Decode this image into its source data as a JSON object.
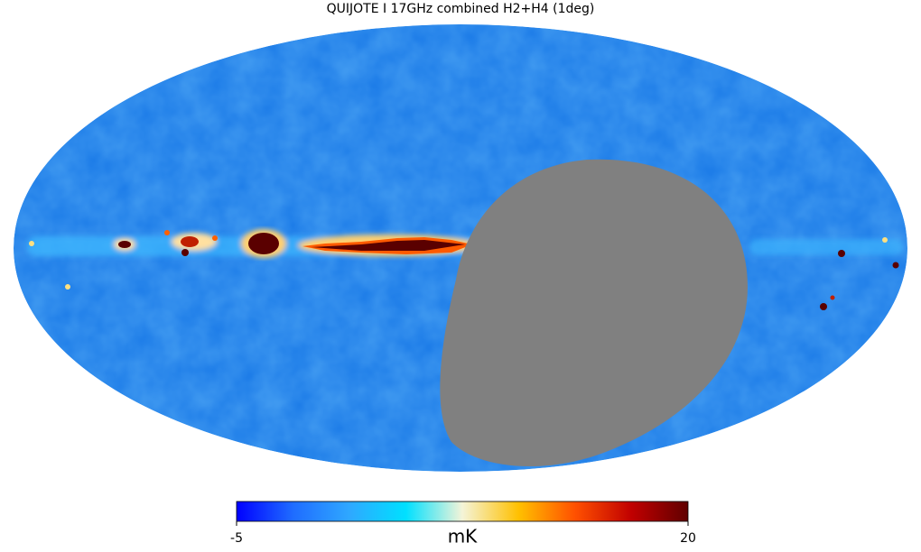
{
  "title": "QUIJOTE I 17GHz combined H2+H4 (1deg)",
  "colorbar": {
    "min": -5,
    "max": 20,
    "label": "mK",
    "colormap": [
      "#0000ff",
      "#1f6cff",
      "#2fa8ff",
      "#00e0ff",
      "#f4f4d8",
      "#ffc000",
      "#ff5000",
      "#c00000",
      "#600000"
    ]
  },
  "mask_color": "#808080"
}
